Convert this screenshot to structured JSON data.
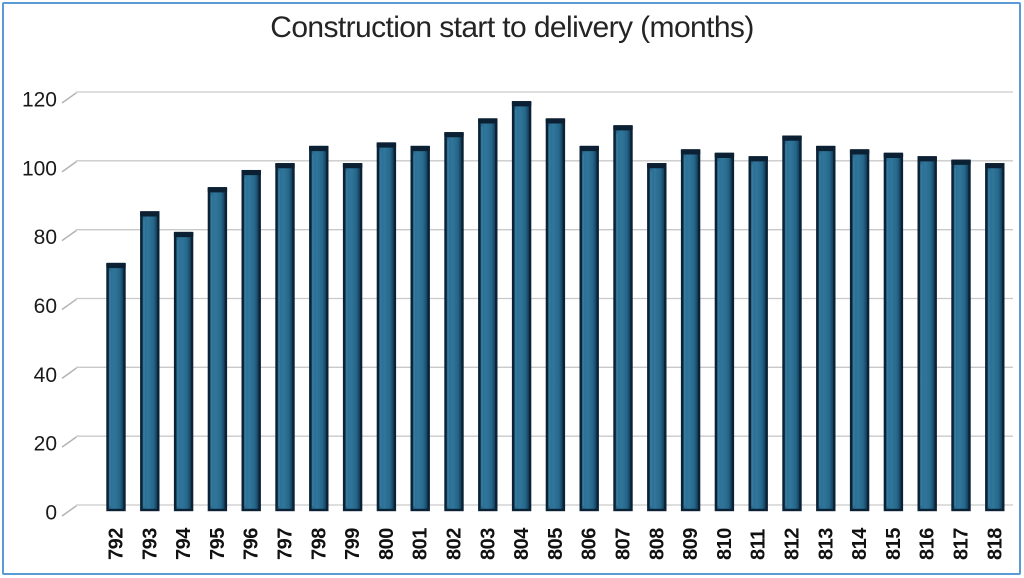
{
  "chart_data": {
    "type": "bar",
    "title": "Construction start to delivery (months)",
    "categories": [
      "792",
      "793",
      "794",
      "795",
      "796",
      "797",
      "798",
      "799",
      "800",
      "801",
      "802",
      "803",
      "804",
      "805",
      "806",
      "807",
      "808",
      "809",
      "810",
      "811",
      "812",
      "813",
      "814",
      "815",
      "816",
      "817",
      "818"
    ],
    "values": [
      70,
      85,
      79,
      92,
      97,
      99,
      104,
      99,
      105,
      104,
      108,
      112,
      117,
      112,
      104,
      110,
      99,
      103,
      102,
      101,
      107,
      104,
      103,
      102,
      101,
      100,
      99
    ],
    "xlabel": "",
    "ylabel": "",
    "ylim": [
      0,
      120
    ],
    "yticks": [
      0,
      20,
      40,
      60,
      80,
      100,
      120
    ],
    "grid": true,
    "legend": "none",
    "style": "3d-beveled-columns",
    "colors": {
      "bar_gradient": [
        "#10344d",
        "#2b6d91",
        "#30769a",
        "#25678a",
        "#0f3049"
      ],
      "bar_outline": "#0a2136",
      "bar_cap": "#0c2033",
      "bar_highlight": "#4389ac",
      "gridline": "#c9c9c9",
      "tick_diagonal": "#b3b3b3",
      "axis_text": "#1a1a1a",
      "title_text": "#242424",
      "frame_border": "#5b9bd5",
      "background": "#ffffff"
    }
  }
}
